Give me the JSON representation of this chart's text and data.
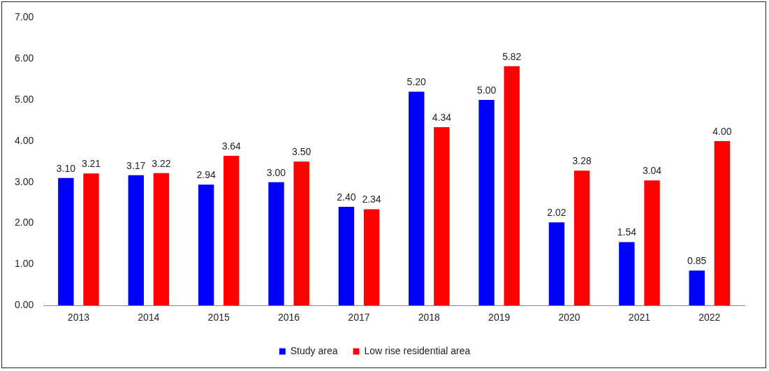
{
  "chart_data": {
    "type": "bar",
    "categories": [
      "2013",
      "2014",
      "2015",
      "2016",
      "2017",
      "2018",
      "2019",
      "2020",
      "2021",
      "2022"
    ],
    "series": [
      {
        "name": "Study area",
        "color": "#0000ff",
        "values": [
          3.1,
          3.17,
          2.94,
          3.0,
          2.4,
          5.2,
          5.0,
          2.02,
          1.54,
          0.85
        ],
        "value_labels": [
          "3.10",
          "3.17",
          "2.94",
          "3.00",
          "2.40",
          "5.20",
          "5.00",
          "2.02",
          "1.54",
          "0.85"
        ]
      },
      {
        "name": "Low rise residential area",
        "color": "#ff0000",
        "values": [
          3.21,
          3.22,
          3.64,
          3.5,
          2.34,
          4.34,
          5.82,
          3.28,
          3.04,
          4.0
        ],
        "value_labels": [
          "3.21",
          "3.22",
          "3.64",
          "3.50",
          "2.34",
          "4.34",
          "5.82",
          "3.28",
          "3.04",
          "4.00"
        ]
      }
    ],
    "ylim": [
      0,
      7
    ],
    "yticks": [
      {
        "value": 0,
        "label": "0.00"
      },
      {
        "value": 1,
        "label": "1.00"
      },
      {
        "value": 2,
        "label": "2.00"
      },
      {
        "value": 3,
        "label": "3.00"
      },
      {
        "value": 4,
        "label": "4.00"
      },
      {
        "value": 5,
        "label": "5.00"
      },
      {
        "value": 6,
        "label": "6.00"
      },
      {
        "value": 7,
        "label": "7.00"
      }
    ],
    "grid": false,
    "legend": "bottom"
  }
}
